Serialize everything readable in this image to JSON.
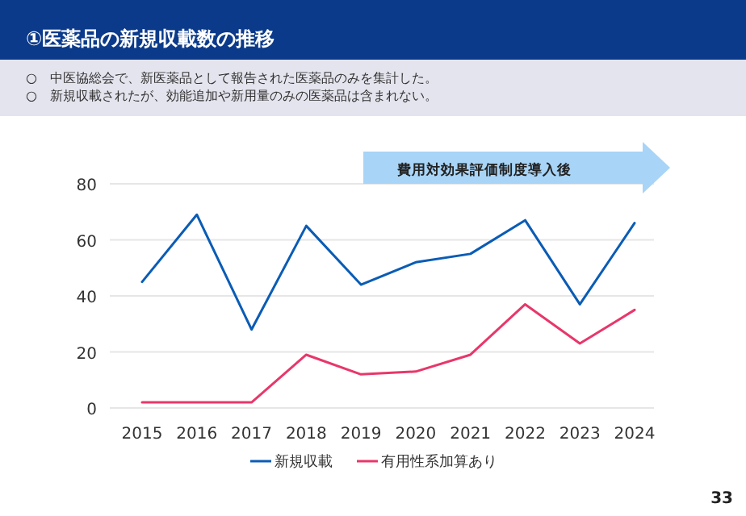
{
  "chart_data": {
    "type": "line",
    "title": "①医薬品の新規収載数の推移",
    "subtitle": "○　中医協総会で、新医薬品として報告された医薬品のみを集計した。\n○　新規収載されたが、効能追加や新用量のみの医薬品は含まれない。",
    "categories": [
      "2015",
      "2016",
      "2017",
      "2018",
      "2019",
      "2020",
      "2021",
      "2022",
      "2023",
      "2024"
    ],
    "series": [
      {
        "name": "新規収載",
        "color": "#0a5cb5",
        "values": [
          45,
          69,
          28,
          65,
          44,
          52,
          55,
          67,
          37,
          66
        ]
      },
      {
        "name": "有用性系加算あり",
        "color": "#e8376a",
        "values": [
          2,
          2,
          2,
          19,
          12,
          13,
          19,
          37,
          23,
          35
        ]
      }
    ],
    "ylim": [
      0,
      80
    ],
    "yticks": [
      0,
      20,
      40,
      60,
      80
    ],
    "grid": "y",
    "legend": "bottom",
    "marker": "none",
    "line_style": "solid",
    "annotations": [
      "費用対効果評価制度導入後",
      "33"
    ]
  }
}
